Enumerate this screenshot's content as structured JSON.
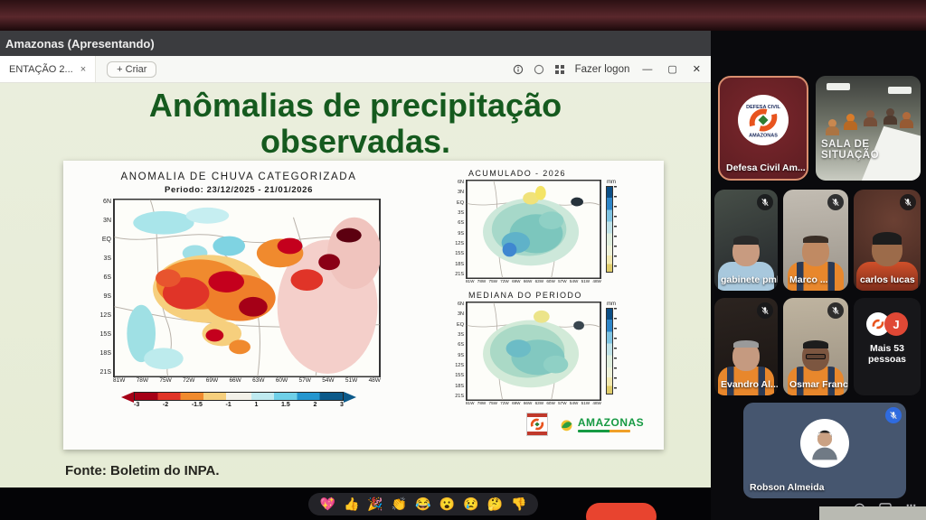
{
  "share_bar": {
    "title": "Amazonas (Apresentando)"
  },
  "browser": {
    "tab_label": "ENTAÇÃO 2...",
    "tab_close": "×",
    "new_tab_label": "+ Criar",
    "logon_label": "Fazer logon",
    "controls": {
      "minimize": "—",
      "maximize": "▢",
      "close": "✕"
    }
  },
  "slide": {
    "title_line1": "Anômalias de precipitação",
    "title_line2": "observadas.",
    "source": "Fonte: Boletim do INPA.",
    "amazonas_logo_text": "AMAZONAS"
  },
  "chart_data": [
    {
      "type": "heatmap",
      "title": "ANOMALIA DE CHUVA CATEGORIZADA",
      "subtitle": "Periodo: 23/12/2025 - 21/01/2026",
      "region": "Amazon basin map",
      "x": [
        "81W",
        "78W",
        "75W",
        "72W",
        "69W",
        "66W",
        "63W",
        "60W",
        "57W",
        "54W",
        "51W",
        "48W"
      ],
      "y": [
        "6N",
        "3N",
        "EQ",
        "3S",
        "6S",
        "9S",
        "12S",
        "15S",
        "18S",
        "21S"
      ],
      "legend": {
        "orientation": "horizontal",
        "labels": [
          "-3",
          "-2",
          "-1.5",
          "-1",
          "1",
          "1.5",
          "2",
          "3"
        ],
        "colors": [
          "#a50017",
          "#e03428",
          "#f08a2e",
          "#f6cf7d",
          "#f3f1e9",
          "#bfeaf0",
          "#6fd0e8",
          "#2596cf",
          "#0c5a8a"
        ]
      },
      "summary": "Strong negative rain anomalies (red/orange) over central and eastern Amazon; positive anomalies (cyan) in the north and southwest fringes"
    },
    {
      "type": "heatmap",
      "title": "ACUMULADO - 2026",
      "x": [
        "81W",
        "78W",
        "75W",
        "72W",
        "69W",
        "66W",
        "63W",
        "60W",
        "57W",
        "54W",
        "51W",
        "48W"
      ],
      "y": [
        "6N",
        "3N",
        "EQ",
        "3S",
        "6S",
        "9S",
        "12S",
        "15S",
        "18S",
        "21S"
      ],
      "legend": {
        "orientation": "vertical",
        "unit": "mm"
      },
      "summary": "Accumulated precipitation, mostly green/teal (moderate) with low yellow patch in far north and wetter blue spots southwest"
    },
    {
      "type": "heatmap",
      "title": "MEDIANA DO PERIODO",
      "x": [
        "81W",
        "78W",
        "75W",
        "72W",
        "69W",
        "66W",
        "63W",
        "60W",
        "57W",
        "54W",
        "51W",
        "48W"
      ],
      "y": [
        "6N",
        "3N",
        "EQ",
        "3S",
        "6S",
        "9S",
        "12S",
        "15S",
        "18S",
        "21S"
      ],
      "legend": {
        "orientation": "vertical",
        "unit": "mm"
      },
      "summary": "Median precipitation of the period, broad green/teal field with pale yellow patch in the north"
    }
  ],
  "participants": [
    {
      "name": "Defesa Civil Am...",
      "active_speaker": true
    },
    {
      "name": "SALA DE SITUAÇÃO"
    },
    {
      "name": "gabinete pmba",
      "muted": true
    },
    {
      "name": "Marco ...",
      "muted": true
    },
    {
      "name": "carlos lucas",
      "muted": true
    },
    {
      "name": "Evandro Al...",
      "muted": true
    },
    {
      "name": "Osmar Francisc...",
      "muted": true
    },
    {
      "name": "Mais 53 pessoas",
      "overflow_badge": "J"
    },
    {
      "name": "Robson Almeida",
      "muted": true
    }
  ],
  "reactions": [
    "💖",
    "👍",
    "🎉",
    "👏",
    "😂",
    "😮",
    "😢",
    "🤔",
    "👎"
  ],
  "colors": {
    "slide_bg": "#e7ecd8",
    "title_green": "#155a1e",
    "active_speaker_border": "#d98f6f",
    "leave_red": "#e8442f"
  }
}
